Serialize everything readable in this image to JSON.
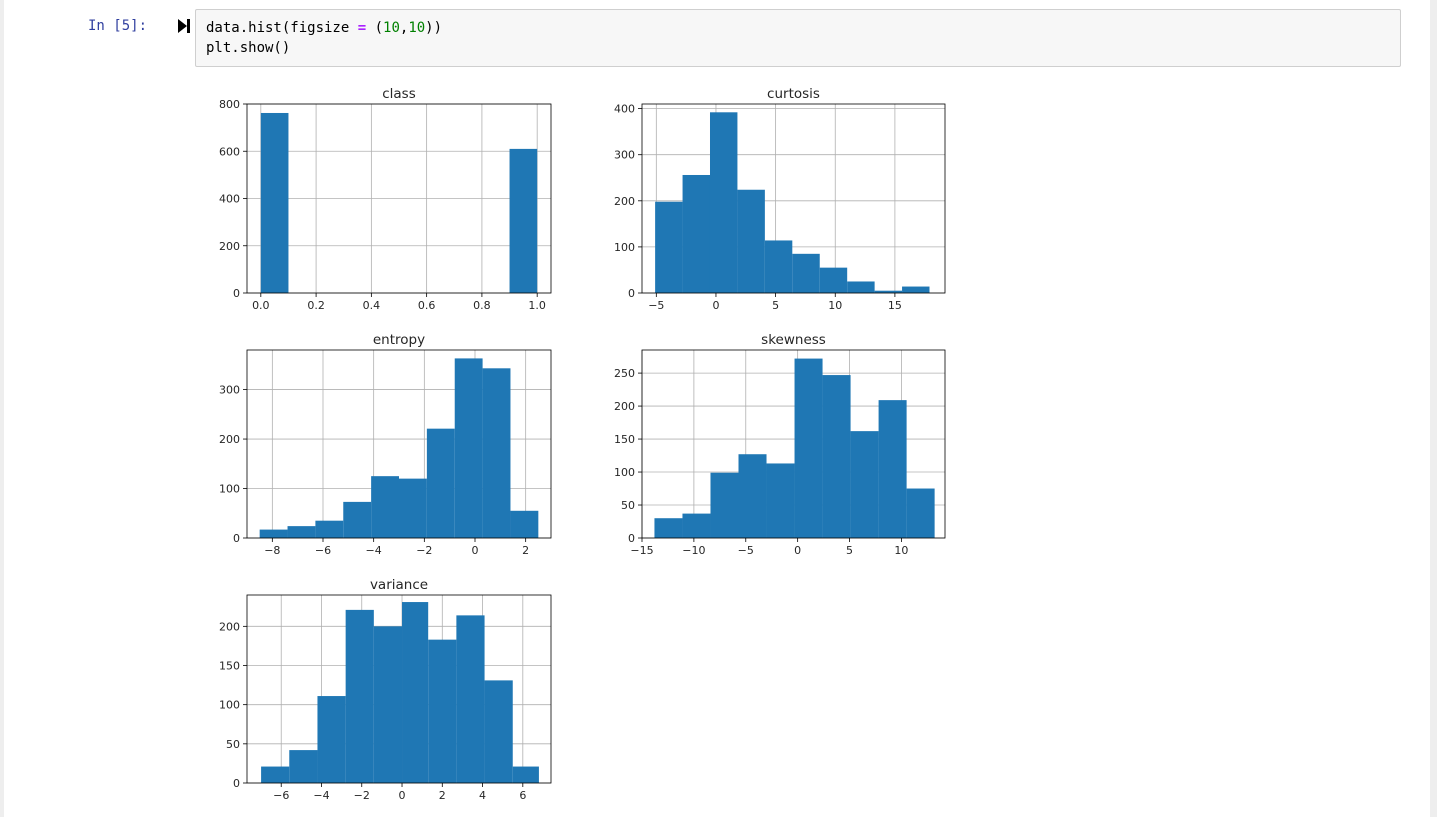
{
  "cell": {
    "prompt": "In [5]:",
    "code_lines": [
      [
        {
          "t": "data.hist(figsize "
        },
        {
          "t": "=",
          "c": "op"
        },
        {
          "t": " ("
        },
        {
          "t": "10",
          "c": "num"
        },
        {
          "t": ","
        },
        {
          "t": "10",
          "c": "num"
        },
        {
          "t": "))"
        }
      ],
      [
        {
          "t": "plt.show()"
        }
      ]
    ]
  },
  "icons": {
    "run": "run-cell-icon"
  },
  "colors": {
    "bar": "#1f77b4",
    "prompt": "#303f9f",
    "number": "#008000",
    "operator": "#aa22ff"
  },
  "chart_data": [
    {
      "type": "bar",
      "title": "class",
      "xlim": [
        -0.05,
        1.05
      ],
      "ylim": [
        0,
        800
      ],
      "xticks": [
        0.0,
        0.2,
        0.4,
        0.6,
        0.8,
        1.0
      ],
      "xtick_labels": [
        "0.0",
        "0.2",
        "0.4",
        "0.6",
        "0.8",
        "1.0"
      ],
      "yticks": [
        0,
        200,
        400,
        600,
        800
      ],
      "ytick_labels": [
        "0",
        "200",
        "400",
        "600",
        "800"
      ],
      "bins": [
        0,
        0.1,
        0.2,
        0.3,
        0.4,
        0.5,
        0.6,
        0.7,
        0.8,
        0.9,
        1.0
      ],
      "counts": [
        762,
        0,
        0,
        0,
        0,
        0,
        0,
        0,
        0,
        610
      ],
      "grid": true
    },
    {
      "type": "bar",
      "title": "curtosis",
      "xlim": [
        -6.2,
        19.2
      ],
      "ylim": [
        0,
        410
      ],
      "xticks": [
        -5,
        0,
        5,
        10,
        15
      ],
      "xtick_labels": [
        "−5",
        "0",
        "5",
        "10",
        "15"
      ],
      "yticks": [
        0,
        100,
        200,
        300,
        400
      ],
      "ytick_labels": [
        "0",
        "100",
        "200",
        "300",
        "400"
      ],
      "bins": [
        -5.1,
        -2.8,
        -0.5,
        1.8,
        4.1,
        6.4,
        8.7,
        11.0,
        13.3,
        15.6,
        17.9
      ],
      "counts": [
        198,
        256,
        392,
        224,
        114,
        85,
        55,
        25,
        5,
        14
      ],
      "grid": true
    },
    {
      "type": "bar",
      "title": "entropy",
      "xlim": [
        -9.0,
        3.0
      ],
      "ylim": [
        0,
        380
      ],
      "xticks": [
        -8,
        -6,
        -4,
        -2,
        0,
        2
      ],
      "xtick_labels": [
        "−8",
        "−6",
        "−4",
        "−2",
        "0",
        "2"
      ],
      "yticks": [
        0,
        100,
        200,
        300
      ],
      "ytick_labels": [
        "0",
        "100",
        "200",
        "300"
      ],
      "bins": [
        -8.5,
        -7.4,
        -6.3,
        -5.2,
        -4.1,
        -3.0,
        -1.9,
        -0.8,
        0.3,
        1.4,
        2.5
      ],
      "counts": [
        17,
        24,
        35,
        73,
        125,
        120,
        221,
        363,
        343,
        55
      ],
      "grid": true
    },
    {
      "type": "bar",
      "title": "skewness",
      "xlim": [
        -15.0,
        14.2
      ],
      "ylim": [
        0,
        285
      ],
      "xticks": [
        -15,
        -10,
        -5,
        0,
        5,
        10
      ],
      "xtick_labels": [
        "−15",
        "−10",
        "−5",
        "0",
        "5",
        "10"
      ],
      "yticks": [
        0,
        50,
        100,
        150,
        200,
        250
      ],
      "ytick_labels": [
        "0",
        "50",
        "100",
        "150",
        "200",
        "250"
      ],
      "bins": [
        -13.8,
        -11.1,
        -8.4,
        -5.7,
        -3.0,
        -0.3,
        2.4,
        5.1,
        7.8,
        10.5,
        13.2
      ],
      "counts": [
        30,
        37,
        99,
        127,
        113,
        272,
        247,
        162,
        209,
        75
      ],
      "grid": true
    },
    {
      "type": "bar",
      "title": "variance",
      "xlim": [
        -7.7,
        7.4
      ],
      "ylim": [
        0,
        240
      ],
      "xticks": [
        -6,
        -4,
        -2,
        0,
        2,
        4,
        6
      ],
      "xtick_labels": [
        "−6",
        "−4",
        "−2",
        "0",
        "2",
        "4",
        "6"
      ],
      "yticks": [
        0,
        50,
        100,
        150,
        200
      ],
      "ytick_labels": [
        "0",
        "50",
        "100",
        "150",
        "200"
      ],
      "bins": [
        -7.0,
        -5.6,
        -4.2,
        -2.8,
        -1.4,
        0.0,
        1.3,
        2.7,
        4.1,
        5.5,
        6.8
      ],
      "counts": [
        21,
        42,
        111,
        221,
        200,
        231,
        183,
        214,
        131,
        21
      ],
      "grid": true
    }
  ]
}
